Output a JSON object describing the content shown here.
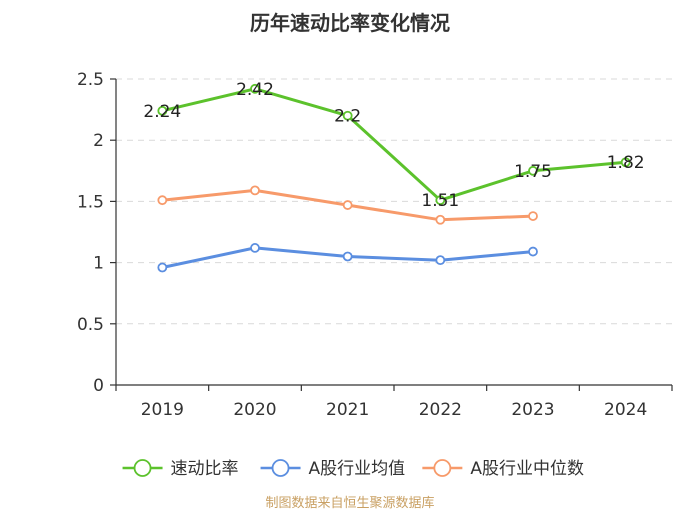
{
  "chart_data": {
    "type": "line",
    "title": "历年速动比率变化情况",
    "categories": [
      "2019",
      "2020",
      "2021",
      "2022",
      "2023",
      "2024"
    ],
    "ylim": [
      0,
      2.5
    ],
    "yticks": [
      "0",
      "0.5",
      "1",
      "1.5",
      "2",
      "2.5"
    ],
    "grid": true,
    "legend_position": "bottom",
    "series": [
      {
        "name": "速动比率",
        "color": "#5cc22c",
        "values": [
          2.24,
          2.42,
          2.2,
          1.51,
          1.75,
          1.82
        ],
        "labels": [
          "2.24",
          "2.42",
          "2.2",
          "1.51",
          "1.75",
          "1.82"
        ],
        "show_labels": true
      },
      {
        "name": "A股行业均值",
        "color": "#5b8ee0",
        "values": [
          0.96,
          1.12,
          1.05,
          1.02,
          1.09,
          null
        ],
        "show_labels": false
      },
      {
        "name": "A股行业中位数",
        "color": "#f79a6a",
        "values": [
          1.51,
          1.59,
          1.47,
          1.35,
          1.38,
          null
        ],
        "show_labels": false
      }
    ]
  },
  "source": "制图数据来自恒生聚源数据库"
}
